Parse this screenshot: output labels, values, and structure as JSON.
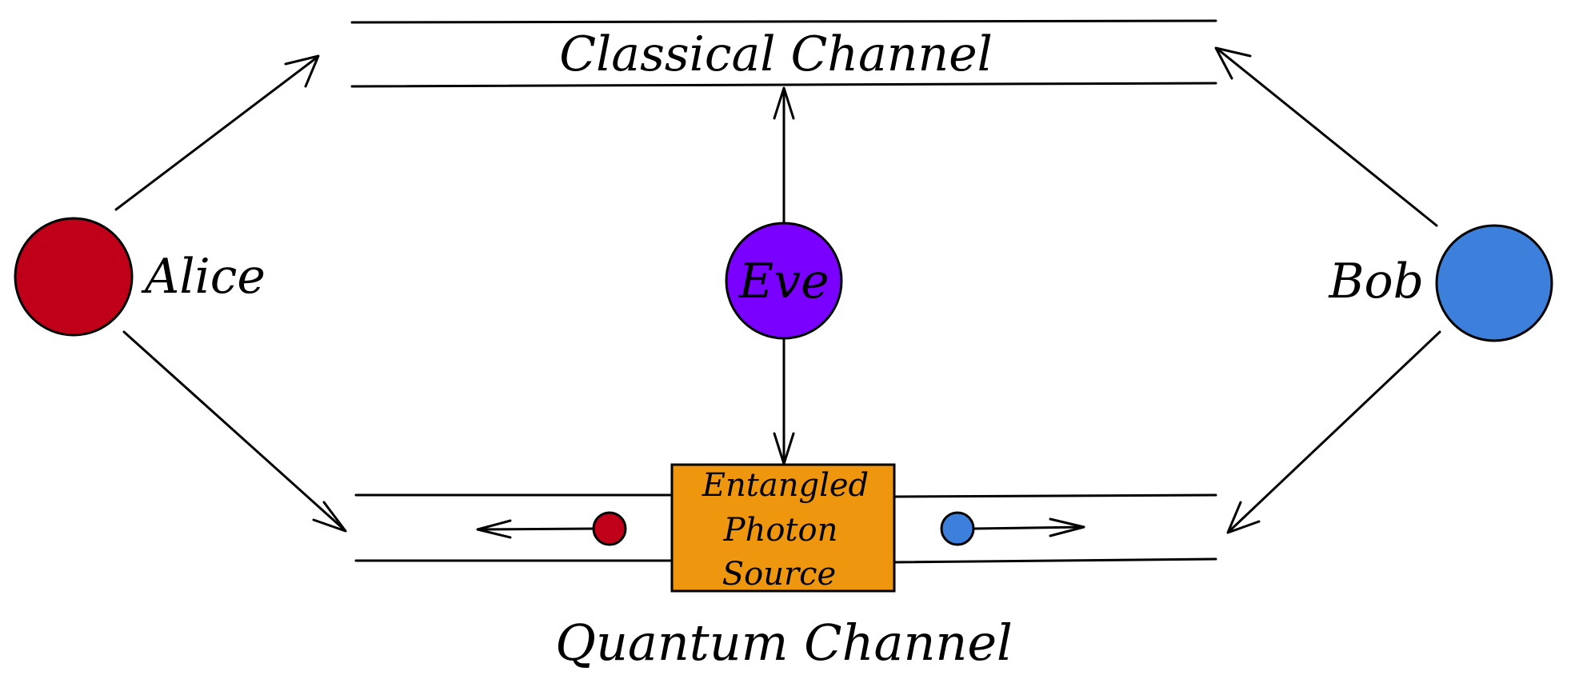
{
  "labels": {
    "classical_channel": "Classical Channel",
    "quantum_channel": "Quantum Channel",
    "alice": "Alice",
    "bob": "Bob",
    "eve": "Eve",
    "source_line1": "Entangled",
    "source_line2": "Photon",
    "source_line3": "Source"
  },
  "colors": {
    "alice": "#bf0018",
    "bob": "#3d80dc",
    "eve": "#7a00ff",
    "source": "#ef960f",
    "stroke": "#000000"
  }
}
